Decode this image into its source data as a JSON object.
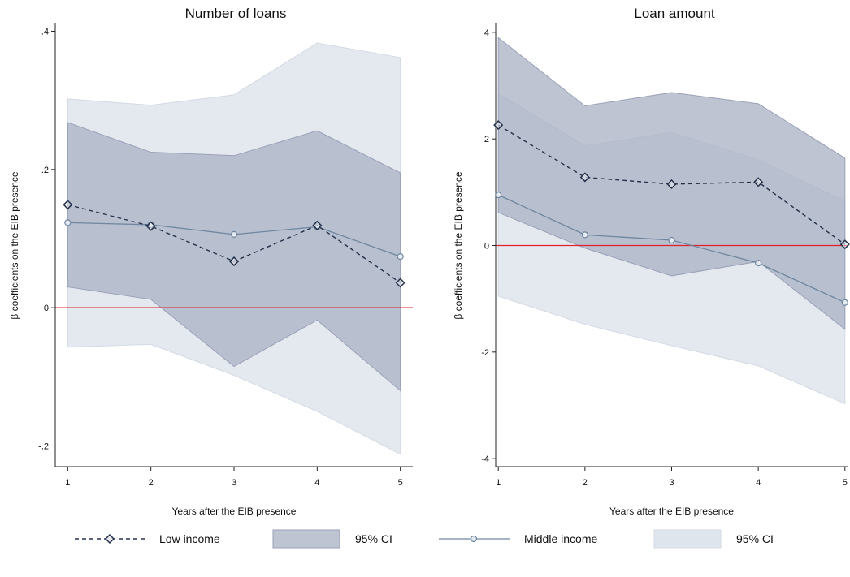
{
  "legend": [
    {
      "label": "Low income",
      "swatch": "dashed-diamond-line"
    },
    {
      "label": "95% CI",
      "swatch": "dark-band"
    },
    {
      "label": "Middle income",
      "swatch": "solid-circle-line"
    },
    {
      "label": "95% CI",
      "swatch": "light-band"
    }
  ],
  "colors": {
    "low_line": "#23324a",
    "middle_line": "#6f87a0",
    "dark_band": "#a9b0c4",
    "light_band": "#dfe5ec",
    "zero_line": "#e0202a"
  },
  "chart_data": [
    {
      "type": "line",
      "title": "Number of loans",
      "xlabel": "Years after the EIB presence",
      "ylabel": "β coefficients on the EIB presence",
      "x": [
        1,
        2,
        3,
        4,
        5
      ],
      "xticks": [
        "1",
        "2",
        "3",
        "4",
        "5"
      ],
      "xlim": [
        0.85,
        5.15
      ],
      "ylim": [
        -0.23,
        0.41
      ],
      "yticks": [
        -0.2,
        0,
        0.2,
        0.4
      ],
      "ytick_labels": [
        "-.2",
        "0",
        ".2",
        ".4"
      ],
      "reference_line": 0,
      "grid": false,
      "legend_position": "bottom",
      "series": [
        {
          "name": "Low income",
          "style": "dashed",
          "marker": "diamond",
          "values": [
            0.149,
            0.118,
            0.067,
            0.119,
            0.036
          ],
          "ci_low": [
            0.03,
            0.012,
            -0.085,
            -0.018,
            -0.12
          ],
          "ci_high": [
            0.268,
            0.225,
            0.22,
            0.256,
            0.195
          ]
        },
        {
          "name": "Middle income",
          "style": "solid",
          "marker": "circle",
          "values": [
            0.123,
            0.12,
            0.106,
            0.117,
            0.074
          ],
          "ci_low": [
            -0.057,
            -0.053,
            -0.098,
            -0.15,
            -0.212
          ],
          "ci_high": [
            0.302,
            0.293,
            0.308,
            0.383,
            0.362
          ]
        }
      ]
    },
    {
      "type": "line",
      "title": "Loan amount",
      "xlabel": "Years after the EIB presence",
      "ylabel": "β coefficients on the EIB presence",
      "x": [
        1,
        2,
        3,
        4,
        5
      ],
      "xticks": [
        "1",
        "2",
        "3",
        "4",
        "5"
      ],
      "xlim": [
        0.97,
        5.03
      ],
      "ylim": [
        -4.15,
        4.15
      ],
      "yticks": [
        -4,
        -2,
        0,
        2,
        4
      ],
      "ytick_labels": [
        "-4",
        "-2",
        "0",
        "2",
        "4"
      ],
      "reference_line": 0,
      "grid": false,
      "legend_position": "bottom",
      "series": [
        {
          "name": "Low income",
          "style": "dashed",
          "marker": "diamond",
          "values": [
            2.26,
            1.28,
            1.15,
            1.19,
            0.02
          ],
          "ci_low": [
            0.62,
            -0.05,
            -0.57,
            -0.3,
            -1.57
          ],
          "ci_high": [
            3.9,
            2.62,
            2.87,
            2.66,
            1.64
          ]
        },
        {
          "name": "Middle income",
          "style": "solid",
          "marker": "circle",
          "values": [
            0.95,
            0.2,
            0.1,
            -0.33,
            -1.07
          ],
          "ci_low": [
            -0.95,
            -1.48,
            -1.88,
            -2.26,
            -2.97
          ],
          "ci_high": [
            2.85,
            1.87,
            2.12,
            1.61,
            0.83
          ]
        }
      ]
    }
  ]
}
